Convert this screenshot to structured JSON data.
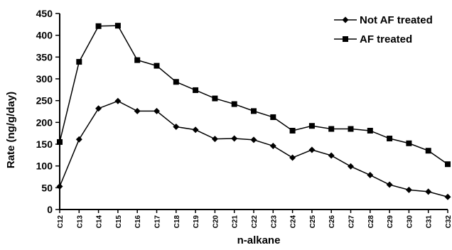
{
  "chart_data": {
    "type": "line",
    "title": "",
    "xlabel": "n-alkane",
    "ylabel": "Rate (ng/g/day)",
    "ylim": [
      0,
      450
    ],
    "yticks": [
      0,
      50,
      100,
      150,
      200,
      250,
      300,
      350,
      400,
      450
    ],
    "grid": false,
    "legend_position": "top-right",
    "categories": [
      "C12",
      "C13",
      "C14",
      "C15",
      "C16",
      "C17",
      "C18",
      "C19",
      "C20",
      "C21",
      "C22",
      "C23",
      "C24",
      "C25",
      "C26",
      "C27",
      "C28",
      "C29",
      "C30",
      "C31",
      "C32"
    ],
    "series": [
      {
        "name": "Not AF treated",
        "marker": "diamond",
        "color": "#000000",
        "values": [
          53,
          161,
          232,
          249,
          226,
          226,
          190,
          183,
          162,
          163,
          160,
          146,
          119,
          137,
          124,
          99,
          79,
          57,
          45,
          41,
          29
        ]
      },
      {
        "name": "AF treated",
        "marker": "square",
        "color": "#000000",
        "values": [
          155,
          339,
          421,
          422,
          343,
          330,
          293,
          274,
          255,
          242,
          226,
          212,
          181,
          192,
          185,
          185,
          181,
          163,
          152,
          135,
          104
        ]
      }
    ]
  }
}
